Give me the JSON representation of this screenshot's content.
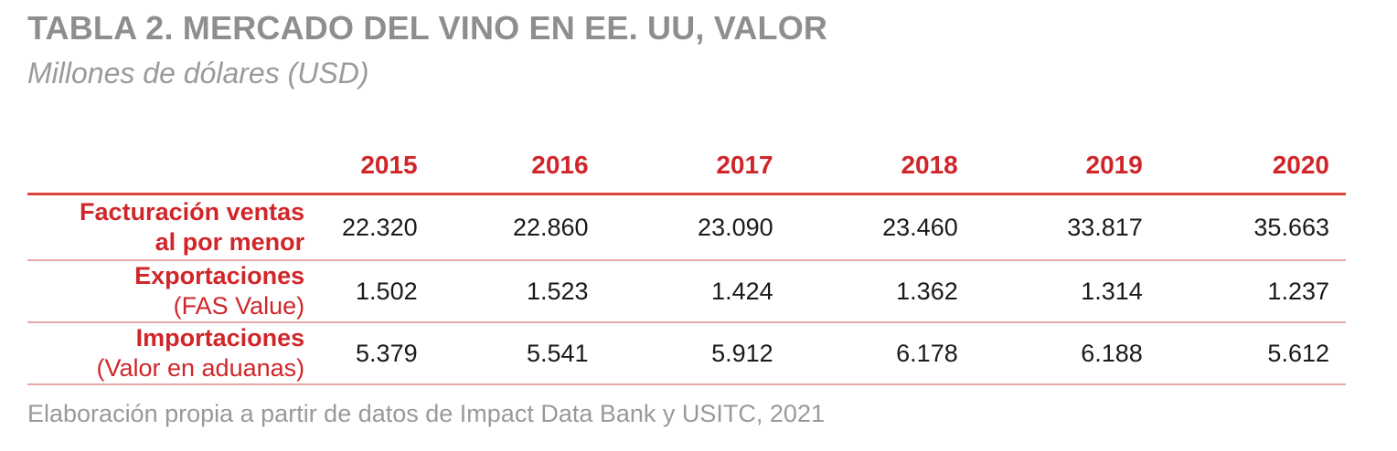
{
  "title": "TABLA 2. MERCADO DEL VINO EN EE. UU, VALOR",
  "subtitle": "Millones de dólares (USD)",
  "table": {
    "columns": [
      "2015",
      "2016",
      "2017",
      "2018",
      "2019",
      "2020"
    ],
    "rows": [
      {
        "label_main": "Facturación ventas al por menor",
        "label_line1": "Facturación ventas",
        "label_line2": "al por menor",
        "values": [
          "22.320",
          "22.860",
          "23.090",
          "23.460",
          "33.817",
          "35.663"
        ]
      },
      {
        "label_line1": "Exportaciones",
        "label_line2": "(FAS Value)",
        "values": [
          "1.502",
          "1.523",
          "1.424",
          "1.362",
          "1.314",
          "1.237"
        ]
      },
      {
        "label_line1": "Importaciones",
        "label_line2": "(Valor en aduanas)",
        "values": [
          "5.379",
          "5.541",
          "5.912",
          "6.178",
          "6.188",
          "5.612"
        ]
      }
    ]
  },
  "source": "Elaboración propia a partir de datos de Impact Data Bank y USITC, 2021",
  "colors": {
    "accent": "#d0262a",
    "title_gray": "#8e8e8e",
    "rule": "#d8453d"
  }
}
